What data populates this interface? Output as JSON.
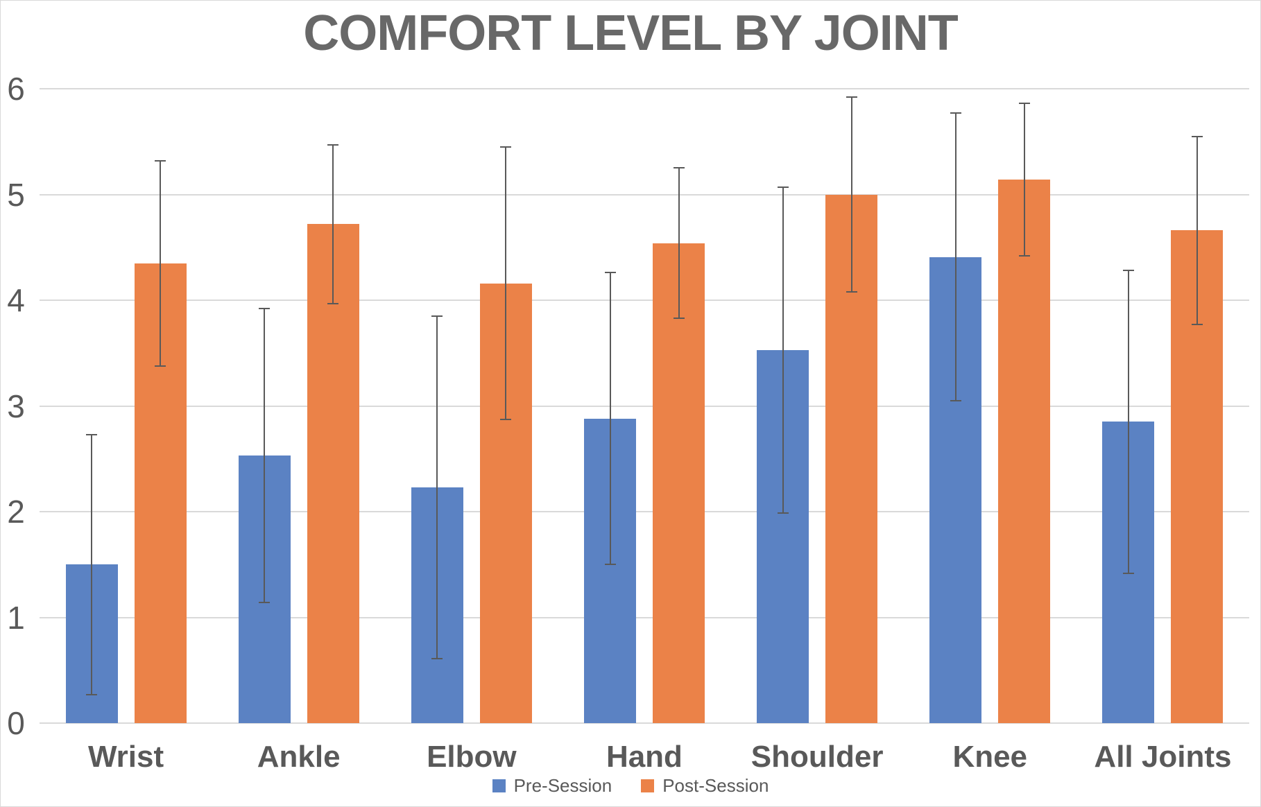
{
  "title": "COMFORT LEVEL BY JOINT",
  "colors": {
    "pre_session": "#5B82C3",
    "post_session": "#EB8248",
    "gridline": "#D9D9D9",
    "text": "#595959",
    "title_text": "#686868",
    "error_bar": "#595959"
  },
  "legend": {
    "items": [
      {
        "label": "Pre-Session",
        "color": "#5B82C3"
      },
      {
        "label": "Post-Session",
        "color": "#EB8248"
      }
    ]
  },
  "chart_data": {
    "type": "bar",
    "title": "COMFORT LEVEL BY JOINT",
    "categories": [
      "Wrist",
      "Ankle",
      "Elbow",
      "Hand",
      "Shoulder",
      "Knee",
      "All Joints"
    ],
    "series": [
      {
        "name": "Pre-Session",
        "color": "#5B82C3",
        "values": [
          1.5,
          2.53,
          2.23,
          2.88,
          3.53,
          4.41,
          2.85
        ],
        "error": [
          1.23,
          1.39,
          1.62,
          1.38,
          1.54,
          1.36,
          1.43
        ]
      },
      {
        "name": "Post-Session",
        "color": "#EB8248",
        "values": [
          4.35,
          4.72,
          4.16,
          4.54,
          5.0,
          5.14,
          4.66
        ],
        "error": [
          0.97,
          0.75,
          1.29,
          0.71,
          0.92,
          0.72,
          0.89
        ]
      }
    ],
    "xlabel": "",
    "ylabel": "",
    "ylim": [
      0,
      6
    ],
    "yticks": [
      0,
      1,
      2,
      3,
      4,
      5,
      6
    ],
    "grid": true,
    "error_bars": true,
    "legend_position": "bottom"
  }
}
